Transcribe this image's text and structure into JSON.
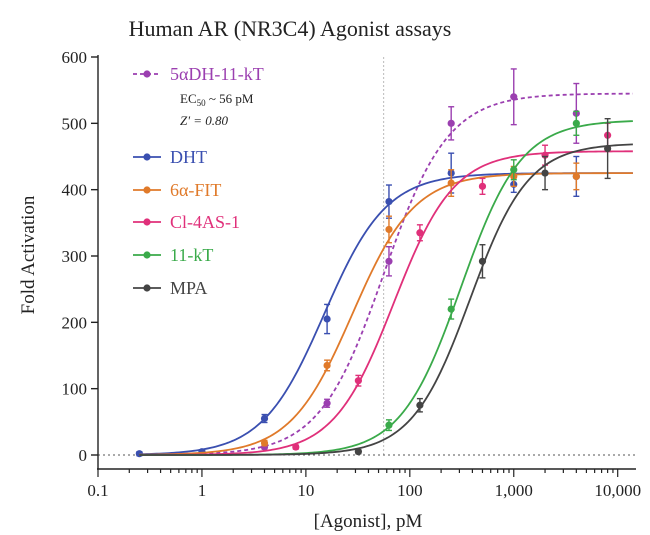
{
  "chart_data": {
    "type": "scatter",
    "title": "Human AR (NR3C4) Agonist assays",
    "xlabel": "[Agonist], pM",
    "ylabel": "Fold Activation",
    "xscale": "log",
    "xlim": [
      0.1,
      15000
    ],
    "ylim": [
      0,
      600
    ],
    "x_ticks": [
      0.1,
      1,
      10,
      100,
      1000,
      10000
    ],
    "x_tick_labels": [
      "0.1",
      "1",
      "10",
      "100",
      "1,000",
      "10,000"
    ],
    "y_ticks": [
      0,
      100,
      200,
      300,
      400,
      500,
      600
    ],
    "y_tick_labels": [
      "0",
      "100",
      "200",
      "300",
      "400",
      "500",
      "600"
    ],
    "reference_line_x": 56,
    "baseline_y": 0,
    "grid": false,
    "legend_position": "top-left",
    "annotation": {
      "ec50_prefix": "EC",
      "ec50_sub": "50",
      "ec50_value": " ~ 56 pM",
      "zprime": "Z' = 0.80"
    },
    "series": [
      {
        "name": "5αDH-11-kT",
        "color": "#9b3fb0",
        "dashed": true,
        "fit": {
          "bottom": 0,
          "top": 545,
          "ec50": 56,
          "hill": 1.4
        },
        "points": [
          {
            "x": 4,
            "y": 12,
            "err": 3
          },
          {
            "x": 16,
            "y": 78,
            "err": 6
          },
          {
            "x": 63,
            "y": 292,
            "err": 22
          },
          {
            "x": 250,
            "y": 500,
            "err": 25
          },
          {
            "x": 1000,
            "y": 540,
            "err": 42
          },
          {
            "x": 4000,
            "y": 515,
            "err": 45
          }
        ]
      },
      {
        "name": "DHT",
        "color": "#3a4fb0",
        "dashed": false,
        "fit": {
          "bottom": 0,
          "top": 425,
          "ec50": 15,
          "hill": 1.45
        },
        "points": [
          {
            "x": 0.25,
            "y": 2,
            "err": 3
          },
          {
            "x": 1,
            "y": 5,
            "err": 3
          },
          {
            "x": 4,
            "y": 55,
            "err": 6
          },
          {
            "x": 16,
            "y": 205,
            "err": 22
          },
          {
            "x": 63,
            "y": 382,
            "err": 25
          },
          {
            "x": 250,
            "y": 425,
            "err": 30
          },
          {
            "x": 1000,
            "y": 408,
            "err": 12
          },
          {
            "x": 4000,
            "y": 420,
            "err": 30
          }
        ]
      },
      {
        "name": "6α-FIT",
        "color": "#e07a2a",
        "dashed": false,
        "fit": {
          "bottom": 0,
          "top": 425,
          "ec50": 28,
          "hill": 1.45
        },
        "points": [
          {
            "x": 4,
            "y": 18,
            "err": 4
          },
          {
            "x": 16,
            "y": 135,
            "err": 8
          },
          {
            "x": 63,
            "y": 340,
            "err": 20
          },
          {
            "x": 250,
            "y": 410,
            "err": 20
          },
          {
            "x": 1000,
            "y": 420,
            "err": 15
          },
          {
            "x": 4000,
            "y": 420,
            "err": 20
          }
        ]
      },
      {
        "name": "Cl-4AS-1",
        "color": "#e0307a",
        "dashed": false,
        "fit": {
          "bottom": 0,
          "top": 458,
          "ec50": 70,
          "hill": 1.5
        },
        "points": [
          {
            "x": 8,
            "y": 12,
            "err": 3
          },
          {
            "x": 32,
            "y": 112,
            "err": 8
          },
          {
            "x": 125,
            "y": 335,
            "err": 12
          },
          {
            "x": 500,
            "y": 405,
            "err": 12
          },
          {
            "x": 2000,
            "y": 452,
            "err": 15
          },
          {
            "x": 8000,
            "y": 482,
            "err": 18
          }
        ]
      },
      {
        "name": "11-kT",
        "color": "#3aaa4a",
        "dashed": false,
        "fit": {
          "bottom": 0,
          "top": 505,
          "ec50": 310,
          "hill": 1.5
        },
        "points": [
          {
            "x": 63,
            "y": 45,
            "err": 8
          },
          {
            "x": 250,
            "y": 220,
            "err": 15
          },
          {
            "x": 1000,
            "y": 430,
            "err": 15
          },
          {
            "x": 4000,
            "y": 500,
            "err": 18
          }
        ]
      },
      {
        "name": "MPA",
        "color": "#444444",
        "dashed": false,
        "fit": {
          "bottom": 0,
          "top": 470,
          "ec50": 380,
          "hill": 1.55
        },
        "points": [
          {
            "x": 32,
            "y": 5,
            "err": 3
          },
          {
            "x": 125,
            "y": 75,
            "err": 10
          },
          {
            "x": 500,
            "y": 292,
            "err": 25
          },
          {
            "x": 2000,
            "y": 425,
            "err": 25
          },
          {
            "x": 8000,
            "y": 462,
            "err": 45
          }
        ]
      }
    ]
  }
}
